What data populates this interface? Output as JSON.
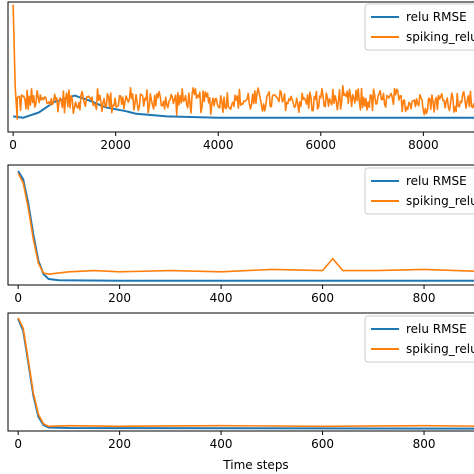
{
  "chart_data": [
    {
      "type": "line",
      "xlim": [
        -100,
        9300
      ],
      "ylim": [
        0,
        10
      ],
      "xticks": [
        0,
        2000,
        4000,
        6000,
        8000
      ],
      "xtick_labels": [
        "0",
        "2000",
        "4000",
        "6000",
        "8000"
      ],
      "legend": {
        "placement": "top-right",
        "entries": [
          "relu RMSE",
          "spiking_relu"
        ]
      },
      "series": [
        {
          "name": "relu RMSE",
          "color": "#1f77b4",
          "points": [
            [
              0,
              1.2
            ],
            [
              200,
              1.1
            ],
            [
              500,
              1.5
            ],
            [
              800,
              2.3
            ],
            [
              1200,
              2.8
            ],
            [
              1500,
              2.4
            ],
            [
              1800,
              1.9
            ],
            [
              2200,
              1.6
            ],
            [
              2300,
              1.5
            ],
            [
              2400,
              1.4
            ],
            [
              3000,
              1.2
            ],
            [
              4000,
              1.1
            ],
            [
              6000,
              1.1
            ],
            [
              8000,
              1.1
            ],
            [
              9300,
              1.1
            ]
          ]
        },
        {
          "name": "spiking_relu",
          "color": "#ff7f0e",
          "spike": [
            [
              0,
              9.8
            ],
            [
              40,
              3.5
            ],
            [
              80,
              1.0
            ]
          ],
          "noise": {
            "base": 2.4,
            "amplitude": 1.2,
            "x_start": 80,
            "x_end": 9300
          }
        }
      ]
    },
    {
      "type": "line",
      "xlim": [
        -20,
        930
      ],
      "ylim": [
        0,
        10
      ],
      "xticks": [
        0,
        200,
        400,
        600,
        800
      ],
      "xtick_labels": [
        "0",
        "200",
        "400",
        "600",
        "800"
      ],
      "legend": {
        "placement": "top-right",
        "entries": [
          "relu RMSE",
          "spiking_relu"
        ]
      },
      "series": [
        {
          "name": "relu RMSE",
          "color": "#1f77b4",
          "points": [
            [
              0,
              9.5
            ],
            [
              10,
              8.8
            ],
            [
              20,
              6.8
            ],
            [
              30,
              4.2
            ],
            [
              40,
              2.0
            ],
            [
              50,
              0.9
            ],
            [
              60,
              0.5
            ],
            [
              80,
              0.4
            ],
            [
              200,
              0.35
            ],
            [
              930,
              0.35
            ]
          ]
        },
        {
          "name": "spiking_relu",
          "color": "#ff7f0e",
          "points": [
            [
              0,
              9.3
            ],
            [
              10,
              8.5
            ],
            [
              20,
              6.4
            ],
            [
              30,
              3.8
            ],
            [
              40,
              1.8
            ],
            [
              50,
              1.0
            ],
            [
              60,
              0.9
            ],
            [
              100,
              1.1
            ],
            [
              150,
              1.2
            ],
            [
              200,
              1.1
            ],
            [
              300,
              1.2
            ],
            [
              400,
              1.1
            ],
            [
              500,
              1.3
            ],
            [
              600,
              1.2
            ],
            [
              620,
              2.2
            ],
            [
              640,
              1.2
            ],
            [
              700,
              1.2
            ],
            [
              800,
              1.3
            ],
            [
              930,
              1.1
            ]
          ]
        }
      ]
    },
    {
      "type": "line",
      "xlim": [
        -20,
        930
      ],
      "ylim": [
        0,
        10
      ],
      "xticks": [
        0,
        200,
        400,
        600,
        800
      ],
      "xtick_labels": [
        "0",
        "200",
        "400",
        "600",
        "800"
      ],
      "xlabel": "Time steps",
      "legend": {
        "placement": "top-right",
        "entries": [
          "relu RMSE",
          "spiking_relu"
        ]
      },
      "series": [
        {
          "name": "relu RMSE",
          "color": "#1f77b4",
          "points": [
            [
              0,
              9.5
            ],
            [
              10,
              8.5
            ],
            [
              20,
              5.8
            ],
            [
              30,
              3.0
            ],
            [
              40,
              1.2
            ],
            [
              50,
              0.5
            ],
            [
              60,
              0.3
            ],
            [
              100,
              0.25
            ],
            [
              930,
              0.2
            ]
          ]
        },
        {
          "name": "spiking_relu",
          "color": "#ff7f0e",
          "points": [
            [
              0,
              9.6
            ],
            [
              10,
              8.7
            ],
            [
              20,
              6.0
            ],
            [
              30,
              3.2
            ],
            [
              40,
              1.4
            ],
            [
              50,
              0.6
            ],
            [
              60,
              0.4
            ],
            [
              100,
              0.45
            ],
            [
              200,
              0.4
            ],
            [
              400,
              0.45
            ],
            [
              600,
              0.4
            ],
            [
              800,
              0.45
            ],
            [
              930,
              0.4
            ]
          ]
        }
      ]
    }
  ]
}
